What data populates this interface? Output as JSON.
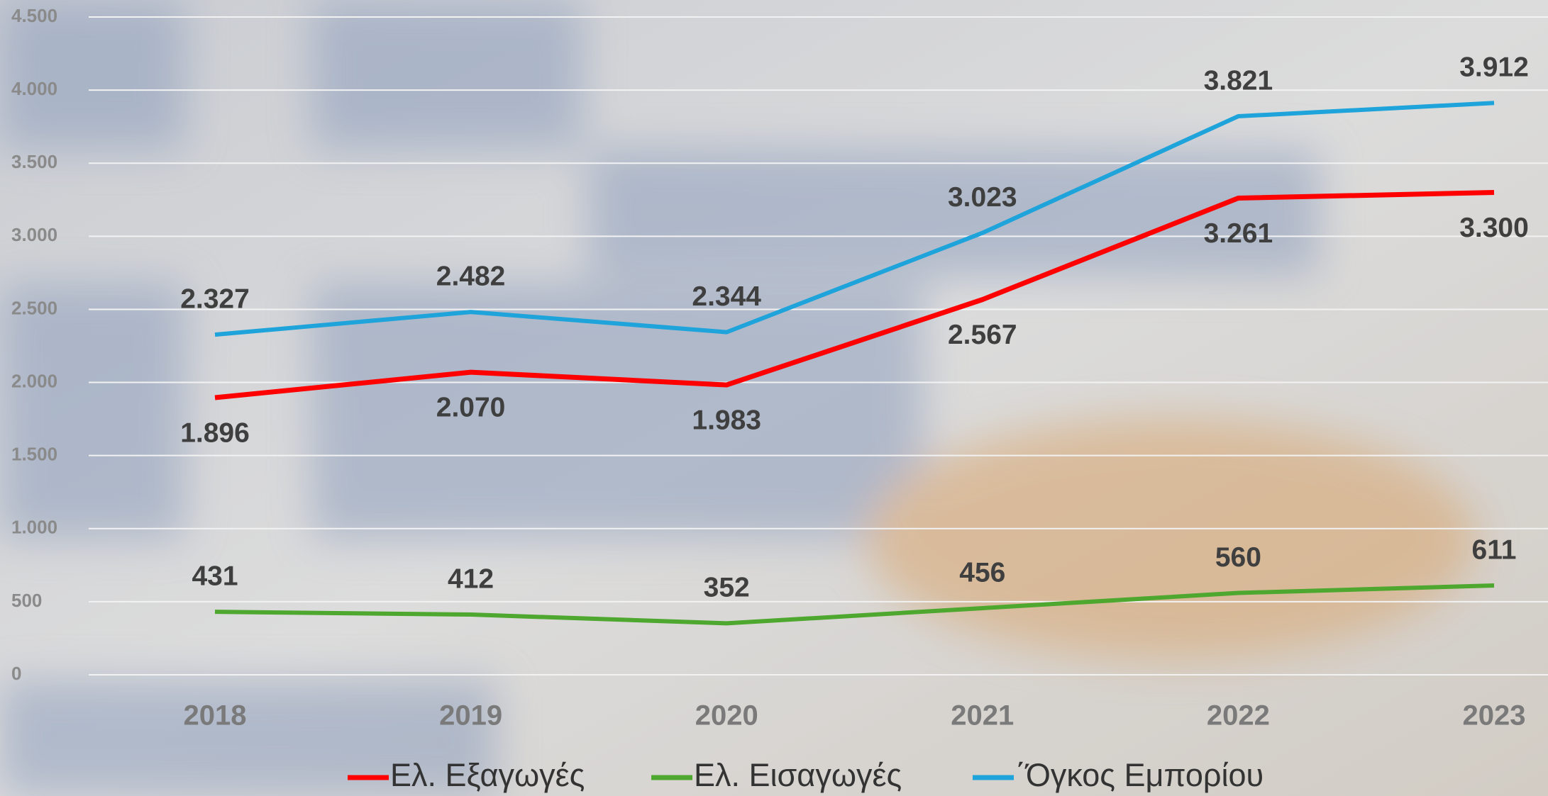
{
  "chart_data": {
    "type": "line",
    "categories": [
      "2018",
      "2019",
      "2020",
      "2021",
      "2022",
      "2023"
    ],
    "series": [
      {
        "name": "Ελ. Εξαγωγές",
        "color": "#ff0000",
        "values": [
          1896,
          2070,
          1983,
          2567,
          3261,
          3300
        ],
        "value_labels": [
          "1.896",
          "2.070",
          "1.983",
          "2.567",
          "3.261",
          "3.300"
        ]
      },
      {
        "name": "Ελ. Εισαγωγές",
        "color": "#4ea72e",
        "values": [
          431,
          412,
          352,
          456,
          560,
          611
        ],
        "value_labels": [
          "431",
          "412",
          "352",
          "456",
          "560",
          "611"
        ]
      },
      {
        "name": "΄Όγκος Εμπορίου",
        "color": "#1ea3da",
        "values": [
          2327,
          2482,
          2344,
          3023,
          3821,
          3912
        ],
        "value_labels": [
          "2.327",
          "2.482",
          "2.344",
          "3.023",
          "3.821",
          "3.912"
        ]
      }
    ],
    "ylim": [
      0,
      4500
    ],
    "yticks": [
      0,
      500,
      {
        "value": 1000,
        "label": "1.000"
      },
      {
        "value": 1500,
        "label": "1.500"
      },
      {
        "value": 2000,
        "label": "2.000"
      },
      {
        "value": 2500,
        "label": "2.500"
      },
      {
        "value": 3000,
        "label": "3.000"
      },
      {
        "value": 3500,
        "label": "3.500"
      },
      {
        "value": 4000,
        "label": "4.000"
      },
      {
        "value": 4500,
        "label": "4.500"
      }
    ],
    "grid": true,
    "legend": "bottom"
  }
}
